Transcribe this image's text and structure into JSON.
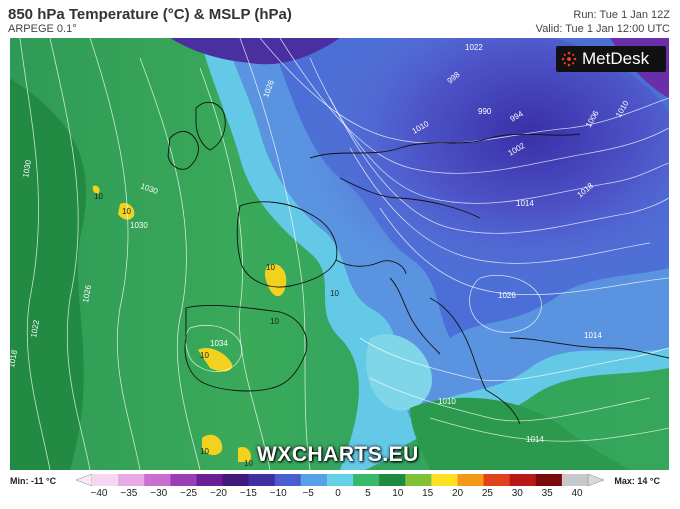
{
  "header": {
    "title": "850 hPa Temperature (°C) & MSLP (hPa)",
    "model": "ARPEGE 0.1°",
    "run": "Run: Tue 1 Jan 12Z",
    "valid": "Valid: Tue 1 Jan 12:00 UTC"
  },
  "logo": {
    "text": "MetDesk"
  },
  "watermark": "WXCHARTS.EU",
  "legend": {
    "min_label": "Min: -11 °C",
    "max_label": "Max: 14 °C",
    "ticks": [
      "−40",
      "−35",
      "−30",
      "−25",
      "−20",
      "−15",
      "−10",
      "−5",
      "0",
      "5",
      "10",
      "15",
      "20",
      "25",
      "30",
      "35",
      "40"
    ],
    "colors": [
      "#f4d7f1",
      "#e8a9e6",
      "#c86fd0",
      "#9a3fb3",
      "#6a1f96",
      "#401a7a",
      "#3f2fa0",
      "#4a5ed0",
      "#5aa0e8",
      "#66d2e8",
      "#38b86a",
      "#1e8a3c",
      "#7fc23a",
      "#ffe020",
      "#f59a18",
      "#e0401a",
      "#b81818",
      "#7a0a0a",
      "#c8c8c8"
    ]
  },
  "map": {
    "isobar_labels": [
      "1030",
      "1026",
      "1022",
      "1018",
      "1034",
      "1030",
      "1026",
      "1022",
      "1018",
      "1014",
      "1010",
      "1006",
      "990",
      "994",
      "998",
      "1002",
      "1010",
      "1014",
      "1026",
      "1030",
      "1010",
      "1014"
    ],
    "temp_labels": [
      "10",
      "10",
      "10",
      "10",
      "10",
      "10",
      "10",
      "10"
    ],
    "colors": {
      "cold_core": "#3b3fa6",
      "cold": "#5b6fd8",
      "cool": "#6fb7ea",
      "zero": "#7ae0e6",
      "mild": "#41b06a",
      "green": "#2f8f47",
      "warm": "#f2d21f"
    }
  }
}
